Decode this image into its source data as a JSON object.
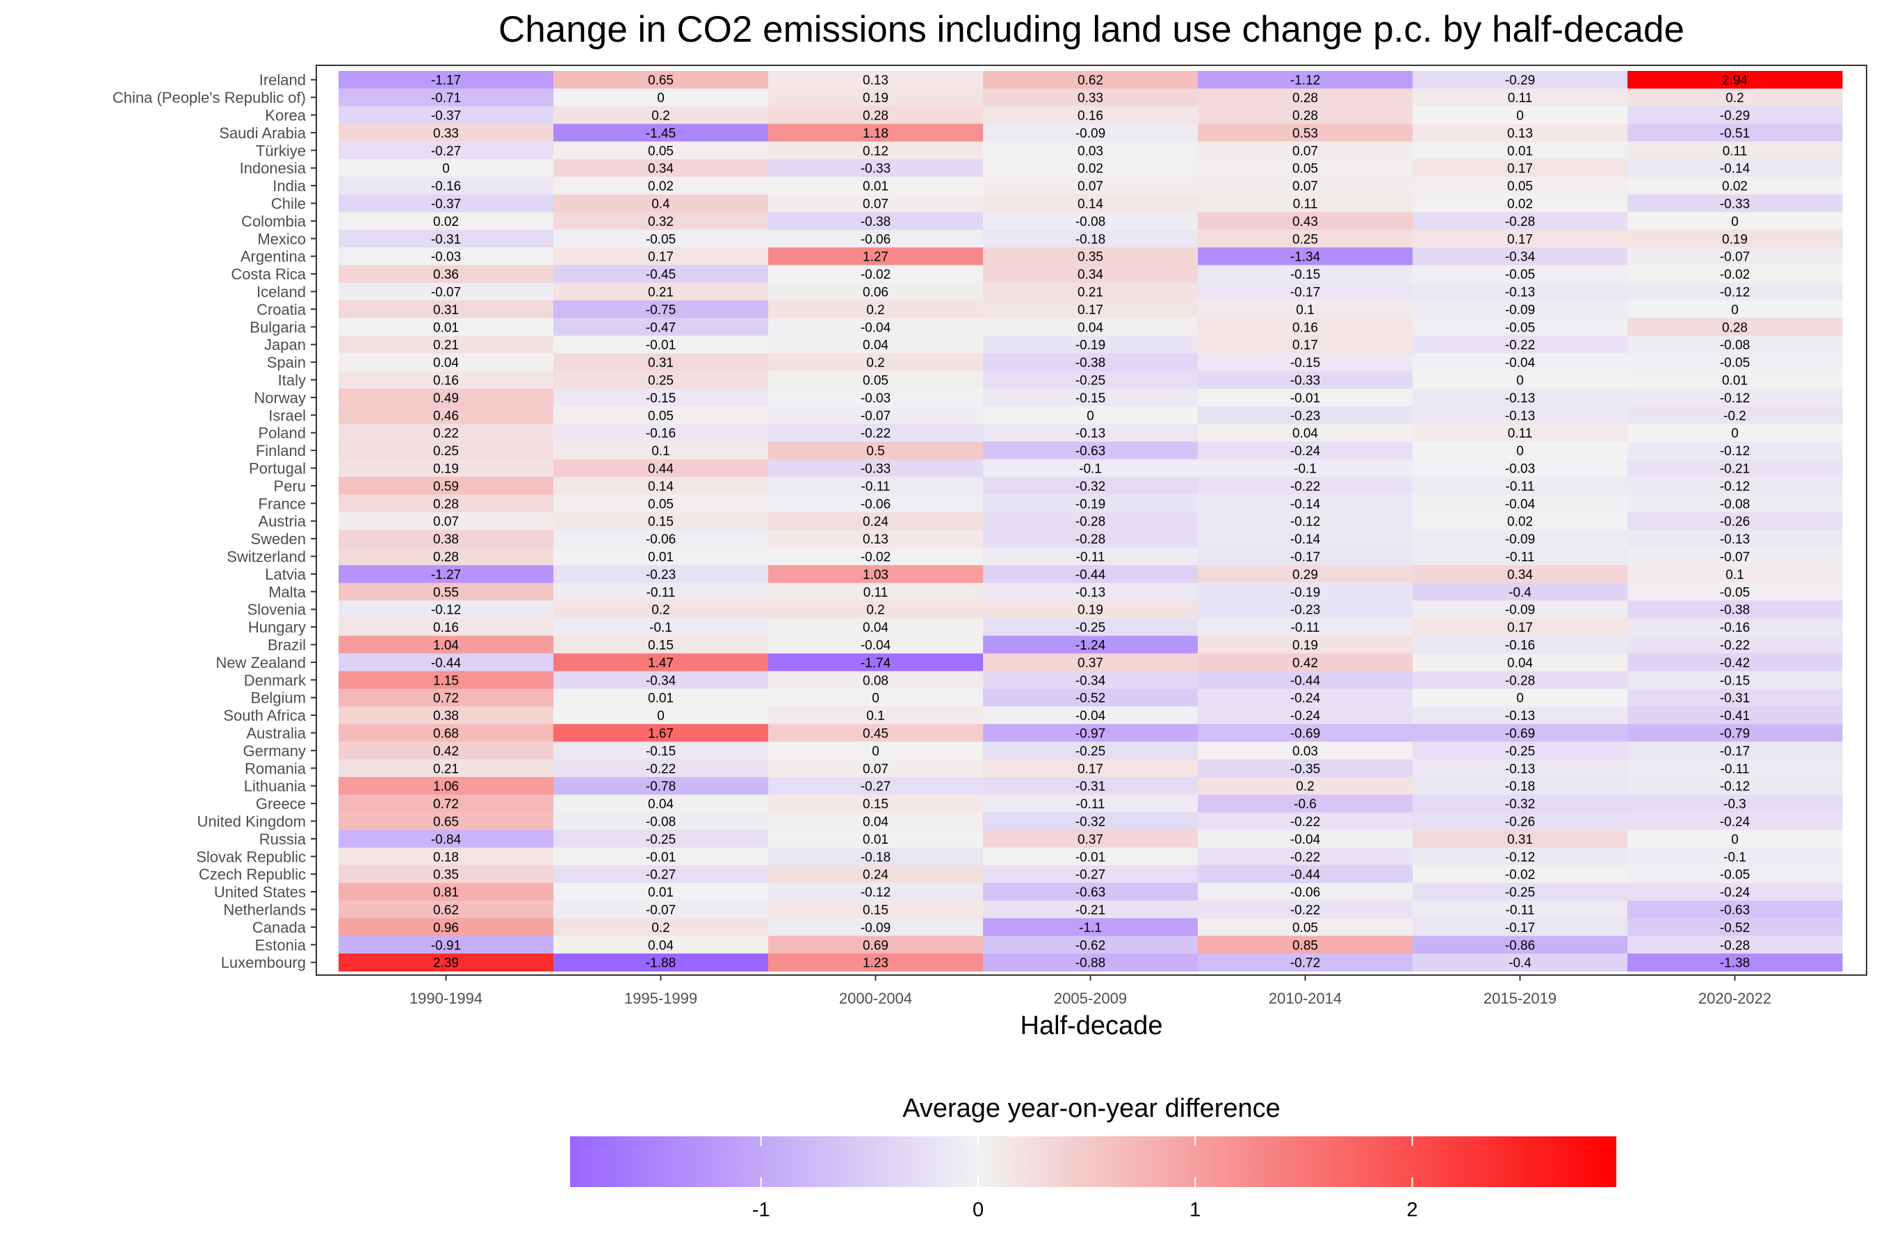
{
  "chart_data": {
    "type": "heatmap",
    "title": "Change in CO2 emissions including land use change p.c. by half-decade",
    "xlabel": "Half-decade",
    "ylabel": "",
    "legend": {
      "title": "Average year-on-year difference",
      "position": "bottom",
      "ticks": [
        -1,
        0,
        1,
        2
      ],
      "tick_labels": [
        "-1",
        "0",
        "1",
        "2"
      ],
      "range": [
        -1.88,
        2.94
      ],
      "low_color": "#9966ff",
      "mid_color": "#f2f2f2",
      "high_color": "#ff0000"
    },
    "x_categories": [
      "1990-1994",
      "1995-1999",
      "2000-2004",
      "2005-2009",
      "2010-2014",
      "2015-2019",
      "2020-2022"
    ],
    "y_categories": [
      "Ireland",
      "China (People's Republic of)",
      "Korea",
      "Saudi Arabia",
      "Türkiye",
      "Indonesia",
      "India",
      "Chile",
      "Colombia",
      "Mexico",
      "Argentina",
      "Costa Rica",
      "Iceland",
      "Croatia",
      "Bulgaria",
      "Japan",
      "Spain",
      "Italy",
      "Norway",
      "Israel",
      "Poland",
      "Finland",
      "Portugal",
      "Peru",
      "France",
      "Austria",
      "Sweden",
      "Switzerland",
      "Latvia",
      "Malta",
      "Slovenia",
      "Hungary",
      "Brazil",
      "New Zealand",
      "Denmark",
      "Belgium",
      "South Africa",
      "Australia",
      "Germany",
      "Romania",
      "Lithuania",
      "Greece",
      "United Kingdom",
      "Russia",
      "Slovak Republic",
      "Czech Republic",
      "United States",
      "Netherlands",
      "Canada",
      "Estonia",
      "Luxembourg"
    ],
    "values": [
      [
        -1.17,
        0.65,
        0.13,
        0.62,
        -1.12,
        -0.29,
        2.94
      ],
      [
        -0.71,
        0,
        0.19,
        0.33,
        0.28,
        0.11,
        0.2
      ],
      [
        -0.37,
        0.2,
        0.28,
        0.16,
        0.28,
        0,
        -0.29
      ],
      [
        0.33,
        -1.45,
        1.18,
        -0.09,
        0.53,
        0.13,
        -0.51
      ],
      [
        -0.27,
        0.05,
        0.12,
        0.03,
        0.07,
        0.01,
        0.11
      ],
      [
        0,
        0.34,
        -0.33,
        0.02,
        0.05,
        0.17,
        -0.14
      ],
      [
        -0.16,
        0.02,
        0.01,
        0.07,
        0.07,
        0.05,
        0.02
      ],
      [
        -0.37,
        0.4,
        0.07,
        0.14,
        0.11,
        0.02,
        -0.33
      ],
      [
        0.02,
        0.32,
        -0.38,
        -0.08,
        0.43,
        -0.28,
        0
      ],
      [
        -0.31,
        -0.05,
        -0.06,
        -0.18,
        0.25,
        0.17,
        0.19
      ],
      [
        -0.03,
        0.17,
        1.27,
        0.35,
        -1.34,
        -0.34,
        -0.07
      ],
      [
        0.36,
        -0.45,
        -0.02,
        0.34,
        -0.15,
        -0.05,
        -0.02
      ],
      [
        -0.07,
        0.21,
        0.06,
        0.21,
        -0.17,
        -0.13,
        -0.12
      ],
      [
        0.31,
        -0.75,
        0.2,
        0.17,
        0.1,
        -0.09,
        0
      ],
      [
        0.01,
        -0.47,
        -0.04,
        0.04,
        0.16,
        -0.05,
        0.28
      ],
      [
        0.21,
        -0.01,
        0.04,
        -0.19,
        0.17,
        -0.22,
        -0.08
      ],
      [
        0.04,
        0.31,
        0.2,
        -0.38,
        -0.15,
        -0.04,
        -0.05
      ],
      [
        0.16,
        0.25,
        0.05,
        -0.25,
        -0.33,
        0,
        0.01
      ],
      [
        0.49,
        -0.15,
        -0.03,
        -0.15,
        -0.01,
        -0.13,
        -0.12
      ],
      [
        0.46,
        0.05,
        -0.07,
        0,
        -0.23,
        -0.13,
        -0.2
      ],
      [
        0.22,
        -0.16,
        -0.22,
        -0.13,
        0.04,
        0.11,
        0
      ],
      [
        0.25,
        0.1,
        0.5,
        -0.63,
        -0.24,
        0,
        -0.12
      ],
      [
        0.19,
        0.44,
        -0.33,
        -0.1,
        -0.1,
        -0.03,
        -0.21
      ],
      [
        0.59,
        0.14,
        -0.11,
        -0.32,
        -0.22,
        -0.11,
        -0.12
      ],
      [
        0.28,
        0.05,
        -0.06,
        -0.19,
        -0.14,
        -0.04,
        -0.08
      ],
      [
        0.07,
        0.15,
        0.24,
        -0.28,
        -0.12,
        0.02,
        -0.26
      ],
      [
        0.38,
        -0.06,
        0.13,
        -0.28,
        -0.14,
        -0.09,
        -0.13
      ],
      [
        0.28,
        0.01,
        -0.02,
        -0.11,
        -0.17,
        -0.11,
        -0.07
      ],
      [
        -1.27,
        -0.23,
        1.03,
        -0.44,
        0.29,
        0.34,
        0.1
      ],
      [
        0.55,
        -0.11,
        0.11,
        -0.13,
        -0.19,
        -0.4,
        -0.05
      ],
      [
        -0.12,
        0.2,
        0.2,
        0.19,
        -0.23,
        -0.09,
        -0.38
      ],
      [
        0.16,
        -0.1,
        0.04,
        -0.25,
        -0.11,
        0.17,
        -0.16
      ],
      [
        1.04,
        0.15,
        -0.04,
        -1.24,
        0.19,
        -0.16,
        -0.22
      ],
      [
        -0.44,
        1.47,
        -1.74,
        0.37,
        0.42,
        0.04,
        -0.42
      ],
      [
        1.15,
        -0.34,
        0.08,
        -0.34,
        -0.44,
        -0.28,
        -0.15
      ],
      [
        0.72,
        0.01,
        0,
        -0.52,
        -0.24,
        0,
        -0.31
      ],
      [
        0.38,
        0,
        0.1,
        -0.04,
        -0.24,
        -0.13,
        -0.41
      ],
      [
        0.68,
        1.67,
        0.45,
        -0.97,
        -0.69,
        -0.69,
        -0.79
      ],
      [
        0.42,
        -0.15,
        0,
        -0.25,
        0.03,
        -0.25,
        -0.17
      ],
      [
        0.21,
        -0.22,
        0.07,
        0.17,
        -0.35,
        -0.13,
        -0.11
      ],
      [
        1.06,
        -0.78,
        -0.27,
        -0.31,
        0.2,
        -0.18,
        -0.12
      ],
      [
        0.72,
        0.04,
        0.15,
        -0.11,
        -0.6,
        -0.32,
        -0.3
      ],
      [
        0.65,
        -0.08,
        0.04,
        -0.32,
        -0.22,
        -0.26,
        -0.24
      ],
      [
        -0.84,
        -0.25,
        0.01,
        0.37,
        -0.04,
        0.31,
        0
      ],
      [
        0.18,
        -0.01,
        -0.18,
        -0.01,
        -0.22,
        -0.12,
        -0.1
      ],
      [
        0.35,
        -0.27,
        0.24,
        -0.27,
        -0.44,
        -0.02,
        -0.05
      ],
      [
        0.81,
        0.01,
        -0.12,
        -0.63,
        -0.06,
        -0.25,
        -0.24
      ],
      [
        0.62,
        -0.07,
        0.15,
        -0.21,
        -0.22,
        -0.11,
        -0.63
      ],
      [
        0.96,
        0.2,
        -0.09,
        -1.1,
        0.05,
        -0.17,
        -0.52
      ],
      [
        -0.91,
        0.04,
        0.69,
        -0.62,
        0.85,
        -0.86,
        -0.28
      ],
      [
        2.39,
        -1.88,
        1.23,
        -0.88,
        -0.72,
        -0.4,
        -1.38
      ]
    ]
  }
}
